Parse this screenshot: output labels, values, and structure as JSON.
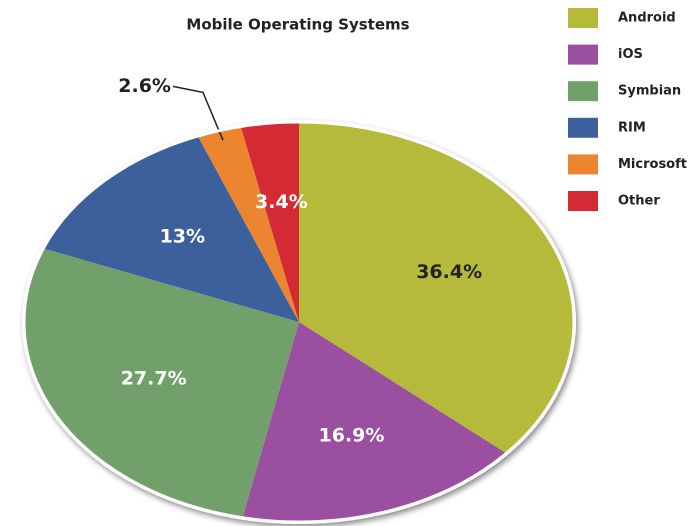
{
  "chart_data": {
    "type": "pie",
    "title": "Mobile Operating Systems",
    "categories": [
      "Android",
      "iOS",
      "Symbian",
      "RIM",
      "Microsoft",
      "Other"
    ],
    "values": [
      36.4,
      16.9,
      27.7,
      13,
      2.6,
      3.4
    ],
    "value_labels": [
      "36.4%",
      "16.9%",
      "27.7%",
      "13%",
      "2.6%",
      "3.4%"
    ],
    "colors": [
      "#b5ba3a",
      "#9a4fa0",
      "#72a06a",
      "#3b609c",
      "#ec8530",
      "#d42a33"
    ]
  }
}
